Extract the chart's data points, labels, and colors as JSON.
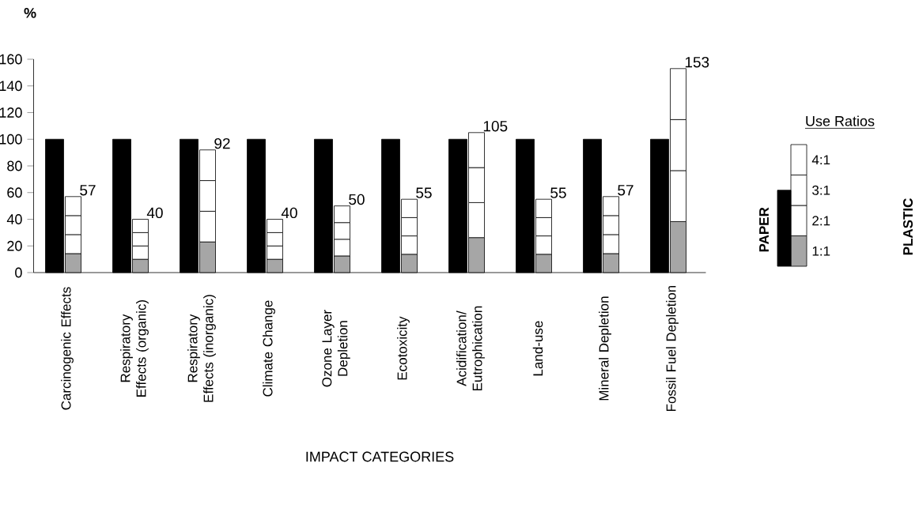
{
  "chart_data": {
    "type": "bar",
    "xlabel": "IMPACT CATEGORIES",
    "ylabel": "%",
    "legend_title": "Use Ratios",
    "legend": "right",
    "categories": [
      "Carcinogenic Effects",
      "Respiratory Effects (organic)",
      "Respiratory Effects (inorganic)",
      "Climate Change",
      "Ozone Layer Depletion",
      "Ecotoxicity",
      "Acidification/ Eutrophication",
      "Land-use",
      "Mineral Depletion",
      "Fossil Fuel Depletion"
    ],
    "series": [
      {
        "name": "PAPER",
        "color": "#000000",
        "values": [
          100,
          100,
          100,
          100,
          100,
          100,
          100,
          100,
          100,
          100
        ]
      },
      {
        "name": "1:1",
        "color": "#a6a6a6",
        "values": [
          14.25,
          10,
          23,
          10,
          12.5,
          13.75,
          26.25,
          13.75,
          14.25,
          38.25
        ],
        "base": [
          0,
          0,
          0,
          0,
          0,
          0,
          0,
          0,
          0,
          0
        ]
      },
      {
        "name": "2:1",
        "color": "#ffffff",
        "values": [
          14.25,
          10,
          23,
          10,
          12.5,
          13.75,
          26.25,
          13.75,
          14.25,
          38.25
        ],
        "base": [
          14.25,
          10,
          23,
          10,
          12.5,
          13.75,
          26.25,
          13.75,
          14.25,
          38.25
        ]
      },
      {
        "name": "3:1",
        "color": "#ffffff",
        "values": [
          14.25,
          10,
          23,
          10,
          12.5,
          13.75,
          26.25,
          13.75,
          14.25,
          38.25
        ],
        "base": [
          28.5,
          20,
          46,
          20,
          25,
          27.5,
          52.5,
          27.5,
          28.5,
          76.5
        ]
      },
      {
        "name": "4:1",
        "color": "#ffffff",
        "values": [
          14.25,
          10,
          23,
          10,
          12.5,
          13.75,
          26.25,
          13.75,
          14.25,
          38.25
        ],
        "base": [
          42.75,
          30,
          69,
          30,
          37.5,
          41.25,
          78.75,
          41.25,
          42.75,
          114.75
        ],
        "value_labels": [
          "57",
          "40",
          "92",
          "40",
          "50",
          "55",
          "105",
          "55",
          "57",
          "153"
        ]
      }
    ],
    "annotations": [
      "PLASTIC"
    ],
    "ylim": [
      0,
      160
    ],
    "yticks": [
      0,
      20,
      40,
      60,
      80,
      100,
      120,
      140,
      160
    ]
  }
}
